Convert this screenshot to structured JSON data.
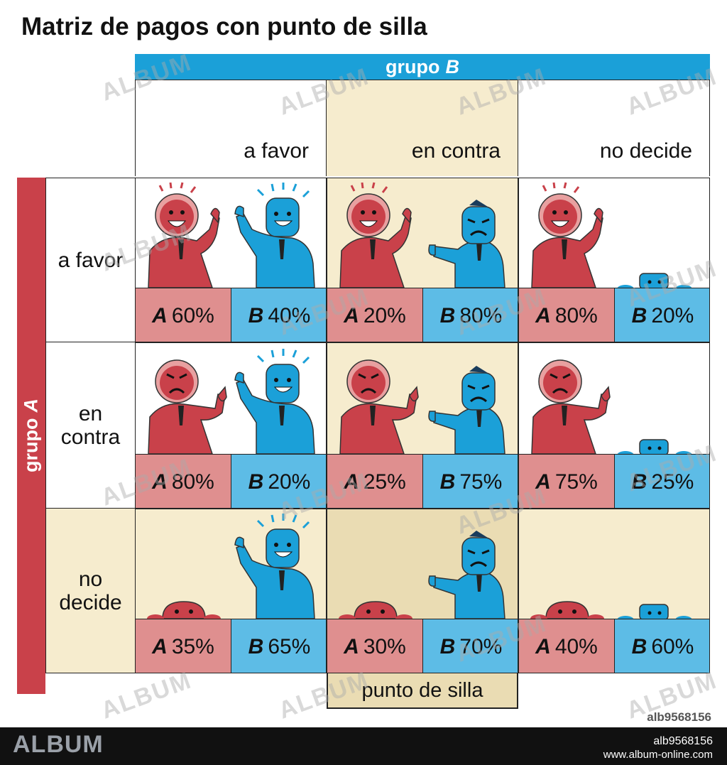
{
  "title": "Matriz de pagos con punto de silla",
  "group_b": {
    "prefix": "grupo",
    "letter": "B"
  },
  "group_a": {
    "prefix": "grupo",
    "letter": "A"
  },
  "columns": [
    "a favor",
    "en contra",
    "no decide"
  ],
  "rows": [
    "a favor",
    "en contra",
    "no decide"
  ],
  "cells": [
    [
      {
        "a_letter": "A",
        "a": "60%",
        "b_letter": "B",
        "b": "40%"
      },
      {
        "a_letter": "A",
        "a": "20%",
        "b_letter": "B",
        "b": "80%"
      },
      {
        "a_letter": "A",
        "a": "80%",
        "b_letter": "B",
        "b": "20%"
      }
    ],
    [
      {
        "a_letter": "A",
        "a": "80%",
        "b_letter": "B",
        "b": "20%"
      },
      {
        "a_letter": "A",
        "a": "25%",
        "b_letter": "B",
        "b": "75%"
      },
      {
        "a_letter": "A",
        "a": "75%",
        "b_letter": "B",
        "b": "25%"
      }
    ],
    [
      {
        "a_letter": "A",
        "a": "35%",
        "b_letter": "B",
        "b": "65%"
      },
      {
        "a_letter": "A",
        "a": "30%",
        "b_letter": "B",
        "b": "70%"
      },
      {
        "a_letter": "A",
        "a": "40%",
        "b_letter": "B",
        "b": "60%"
      }
    ]
  ],
  "saddle_label": "punto de silla",
  "colors": {
    "red": "#c9414a",
    "blue": "#1ba0d8",
    "pink": "#df8f8f",
    "light_blue": "#5dbce6",
    "beige": "#f6ecce",
    "beige_dark": "#eadcb3"
  },
  "watermark": "ALBUM",
  "footer": {
    "logo": "ALBUM",
    "image_id": "alb9568156",
    "url": "www.album-online.com"
  },
  "image_id_mark": "alb9568156"
}
